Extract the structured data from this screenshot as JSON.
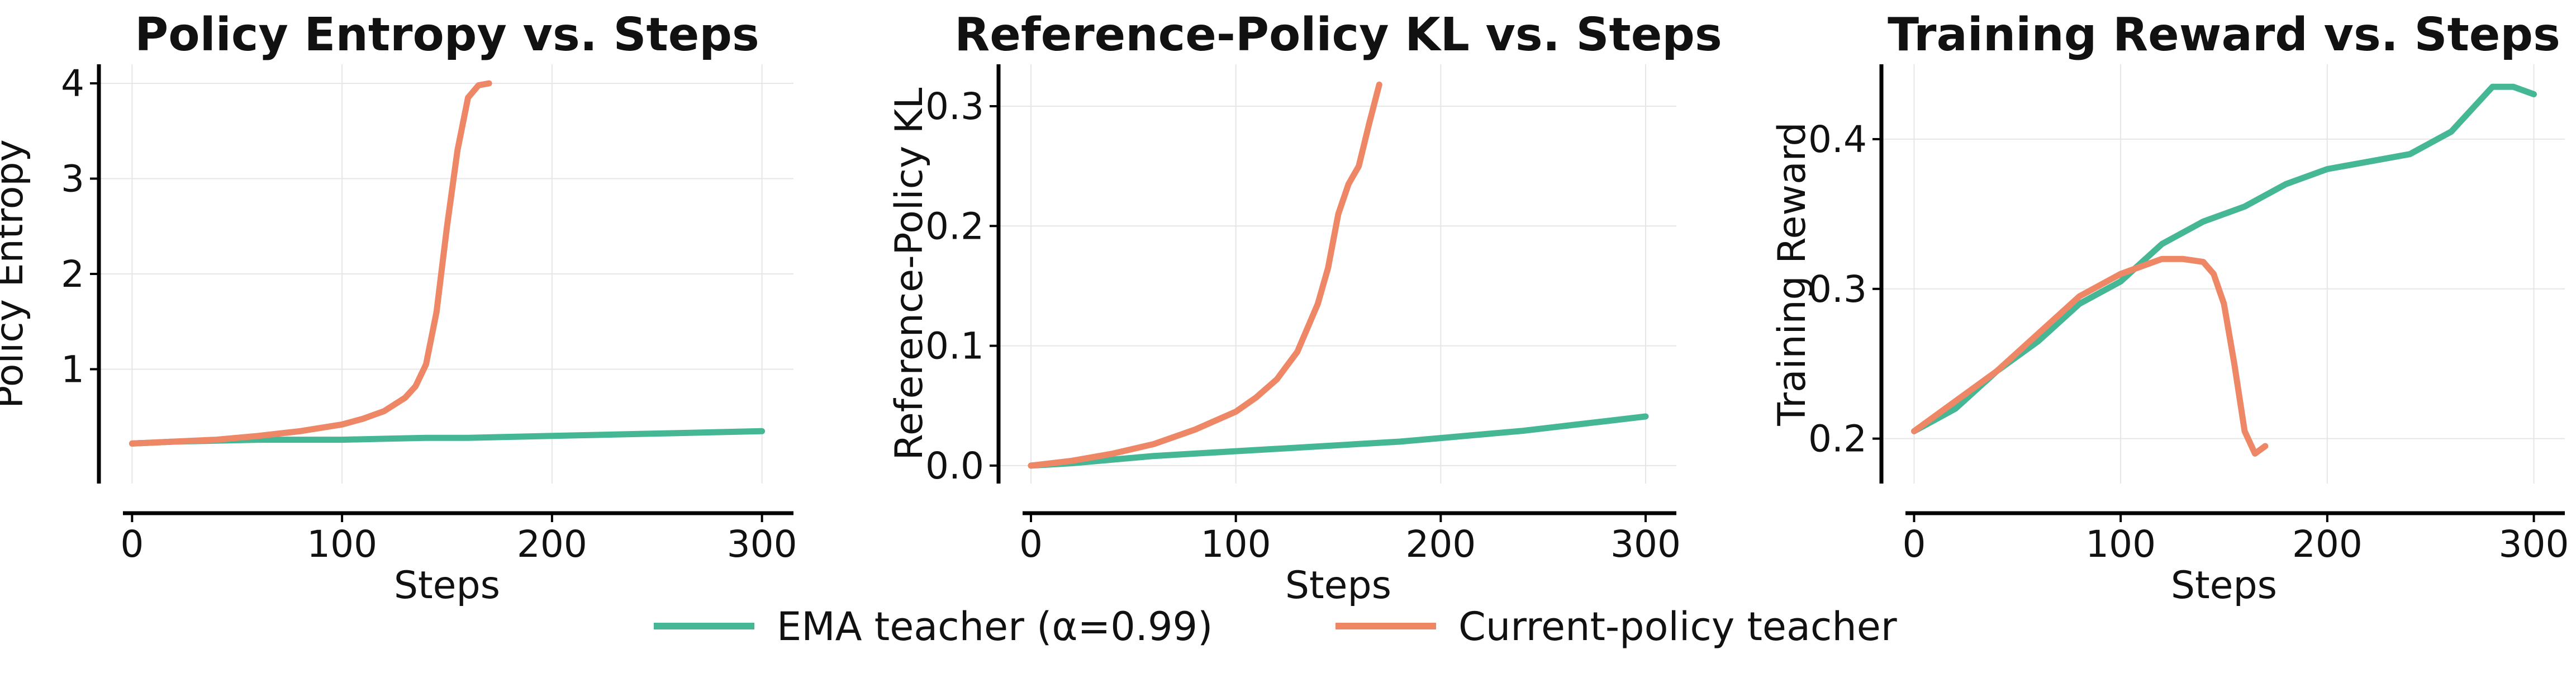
{
  "colors": {
    "ema": "#45b795",
    "current": "#ee8766"
  },
  "legend": {
    "placement": "bottom-center",
    "entries": [
      {
        "key": "ema",
        "name": "EMA teacher (α=0.99)",
        "color": "#45b795"
      },
      {
        "key": "current",
        "name": "Current-policy teacher",
        "color": "#ee8766"
      }
    ]
  },
  "chart_data": [
    {
      "type": "line",
      "title": "Policy Entropy vs. Steps",
      "xlabel": "Steps",
      "ylabel": "Policy Entropy",
      "xlim": [
        -15,
        315
      ],
      "ylim": [
        -0.2,
        4.2
      ],
      "xticks": [
        0,
        100,
        200,
        300
      ],
      "yticks": [
        1,
        2,
        3,
        4
      ],
      "xtick_labels": [
        "0",
        "100",
        "200",
        "300"
      ],
      "ytick_labels": [
        "1",
        "2",
        "3",
        "4"
      ],
      "grid": true,
      "series": [
        {
          "name": "EMA teacher (α=0.99)",
          "key": "ema",
          "x": [
            0,
            20,
            40,
            60,
            80,
            100,
            120,
            140,
            160,
            180,
            200,
            220,
            240,
            260,
            280,
            300
          ],
          "y": [
            0.22,
            0.24,
            0.25,
            0.26,
            0.26,
            0.26,
            0.27,
            0.28,
            0.28,
            0.29,
            0.3,
            0.31,
            0.32,
            0.33,
            0.34,
            0.35
          ]
        },
        {
          "name": "Current-policy teacher",
          "key": "current",
          "x": [
            0,
            20,
            40,
            60,
            80,
            100,
            110,
            120,
            130,
            135,
            140,
            145,
            150,
            155,
            160,
            165,
            170
          ],
          "y": [
            0.22,
            0.24,
            0.26,
            0.3,
            0.35,
            0.42,
            0.48,
            0.56,
            0.7,
            0.82,
            1.05,
            1.6,
            2.5,
            3.3,
            3.85,
            3.98,
            4.0
          ]
        }
      ]
    },
    {
      "type": "line",
      "title": "Reference-Policy KL vs. Steps",
      "xlabel": "Steps",
      "ylabel": "Reference-Policy KL",
      "xlim": [
        -15,
        315
      ],
      "ylim": [
        -0.015,
        0.335
      ],
      "xticks": [
        0,
        100,
        200,
        300
      ],
      "yticks": [
        0.0,
        0.1,
        0.2,
        0.3
      ],
      "xtick_labels": [
        "0",
        "100",
        "200",
        "300"
      ],
      "ytick_labels": [
        "0.0",
        "0.1",
        "0.2",
        "0.3"
      ],
      "grid": true,
      "series": [
        {
          "name": "EMA teacher (α=0.99)",
          "key": "ema",
          "x": [
            0,
            20,
            40,
            60,
            80,
            100,
            120,
            140,
            160,
            180,
            200,
            220,
            240,
            260,
            280,
            300
          ],
          "y": [
            0.0,
            0.002,
            0.005,
            0.008,
            0.01,
            0.012,
            0.014,
            0.016,
            0.018,
            0.02,
            0.023,
            0.026,
            0.029,
            0.033,
            0.037,
            0.041
          ]
        },
        {
          "name": "Current-policy teacher",
          "key": "current",
          "x": [
            0,
            20,
            40,
            60,
            80,
            100,
            110,
            120,
            130,
            140,
            145,
            150,
            155,
            160,
            165,
            170
          ],
          "y": [
            0.0,
            0.004,
            0.01,
            0.018,
            0.03,
            0.045,
            0.057,
            0.072,
            0.095,
            0.135,
            0.165,
            0.21,
            0.235,
            0.25,
            0.285,
            0.318
          ]
        }
      ]
    },
    {
      "type": "line",
      "title": "Training Reward vs. Steps",
      "xlabel": "Steps",
      "ylabel": "Training Reward",
      "xlim": [
        -15,
        315
      ],
      "ylim": [
        0.17,
        0.45
      ],
      "xticks": [
        0,
        100,
        200,
        300
      ],
      "yticks": [
        0.2,
        0.3,
        0.4
      ],
      "xtick_labels": [
        "0",
        "100",
        "200",
        "300"
      ],
      "ytick_labels": [
        "0.2",
        "0.3",
        "0.4"
      ],
      "grid": true,
      "series": [
        {
          "name": "EMA teacher (α=0.99)",
          "key": "ema",
          "x": [
            0,
            20,
            40,
            60,
            80,
            100,
            120,
            140,
            160,
            180,
            200,
            220,
            240,
            260,
            270,
            280,
            290,
            300
          ],
          "y": [
            0.205,
            0.22,
            0.245,
            0.265,
            0.29,
            0.305,
            0.33,
            0.345,
            0.355,
            0.37,
            0.38,
            0.385,
            0.39,
            0.405,
            0.42,
            0.435,
            0.435,
            0.43
          ]
        },
        {
          "name": "Current-policy teacher",
          "key": "current",
          "x": [
            0,
            20,
            40,
            60,
            80,
            100,
            110,
            120,
            130,
            140,
            145,
            150,
            155,
            160,
            165,
            170
          ],
          "y": [
            0.205,
            0.225,
            0.245,
            0.27,
            0.295,
            0.31,
            0.315,
            0.32,
            0.32,
            0.318,
            0.31,
            0.29,
            0.25,
            0.205,
            0.19,
            0.195
          ]
        }
      ]
    }
  ]
}
